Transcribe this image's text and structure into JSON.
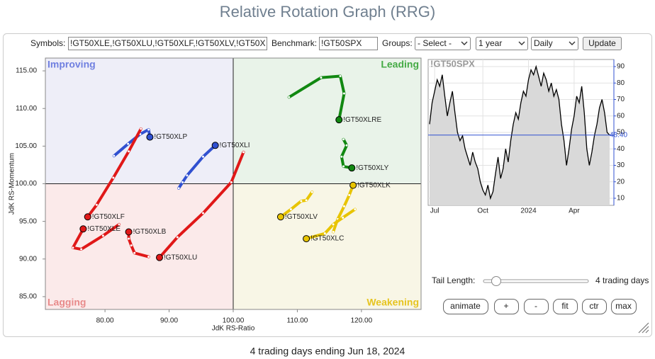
{
  "header": {
    "title": "Relative Rotation Graph (RRG)"
  },
  "controls": {
    "symbols_label": "Symbols:",
    "symbols": "!GT50XLE,!GT50XLU,!GT50XLF,!GT50XLV,!GT50X",
    "benchmark_label": "Benchmark:",
    "benchmark": "!GT50SPX",
    "groups_label": "Groups:",
    "groups": "- Select -",
    "period": "1 year",
    "frequency": "Daily",
    "update": "Update"
  },
  "chart_data": [
    {
      "type": "rrg",
      "xlabel": "JdK RS-Ratio",
      "ylabel": "JdK RS-Momentum",
      "quadrants": [
        "Improving",
        "Leading",
        "Lagging",
        "Weakening"
      ],
      "crosshair": {
        "x": 100,
        "y": 100
      },
      "xlim": [
        70.7,
        129.3
      ],
      "ylim": [
        83.3,
        116.7
      ],
      "xticks": [
        {
          "value": 80,
          "label": "80.00"
        },
        {
          "value": 90,
          "label": "90.00"
        },
        {
          "value": 100,
          "label": "100.00"
        },
        {
          "value": 110,
          "label": "110.00"
        },
        {
          "value": 120,
          "label": "120.00"
        }
      ],
      "yticks": [
        {
          "value": 85,
          "label": "85.00"
        },
        {
          "value": 90,
          "label": "90.00"
        },
        {
          "value": 95,
          "label": "95.00"
        },
        {
          "value": 100,
          "label": "100.00"
        },
        {
          "value": 105,
          "label": "105.00"
        },
        {
          "value": 110,
          "label": "110.00"
        },
        {
          "value": 115,
          "label": "115.00"
        }
      ],
      "series": [
        {
          "name": "!GT50XLP",
          "color": "#3050d0",
          "x": [
            81.4,
            83.6,
            85.5,
            86.8,
            87.0
          ],
          "values": [
            103.7,
            105.3,
            106.6,
            107.2,
            106.2
          ]
        },
        {
          "name": "!GT50XLI",
          "color": "#3050d0",
          "x": [
            91.5,
            92.1,
            92.8,
            95.3,
            97.2
          ],
          "values": [
            99.4,
            100.2,
            101.1,
            103.6,
            105.1
          ]
        },
        {
          "name": "!GT50XLRE",
          "color": "#118811",
          "x": [
            108.7,
            113.7,
            116.7,
            117.3,
            116.5
          ],
          "values": [
            111.5,
            114.1,
            114.3,
            112.0,
            108.5
          ]
        },
        {
          "name": "!GT50XLY",
          "color": "#118811",
          "x": [
            117.2,
            117.7,
            116.9,
            117.2,
            118.5
          ],
          "values": [
            105.9,
            105.1,
            103.6,
            102.3,
            102.1
          ]
        },
        {
          "name": "!GT50XLK",
          "color": "#e8c400",
          "x": [
            115.6,
            116.3,
            117.3,
            118.1,
            118.7
          ],
          "values": [
            93.6,
            95.3,
            97.0,
            98.5,
            99.8
          ]
        },
        {
          "name": "!GT50XLV",
          "color": "#e8c400",
          "x": [
            112.3,
            111.4,
            110.6,
            109.0,
            107.4
          ],
          "values": [
            98.9,
            97.8,
            97.7,
            96.6,
            95.6
          ]
        },
        {
          "name": "!GT50XLC",
          "color": "#e8c400",
          "x": [
            119.0,
            117.1,
            115.6,
            114.3,
            111.4
          ],
          "values": [
            96.6,
            95.5,
            94.6,
            93.4,
            92.7
          ]
        },
        {
          "name": "!GT50XLF",
          "color": "#e01818",
          "x": [
            85.6,
            83.7,
            81.3,
            78.7,
            77.3
          ],
          "values": [
            107.3,
            104.3,
            100.8,
            97.2,
            95.6
          ]
        },
        {
          "name": "!GT50XLE",
          "color": "#e01818",
          "x": [
            82.2,
            79.7,
            76.3,
            75.0,
            76.6
          ],
          "values": [
            94.6,
            93.1,
            91.3,
            91.5,
            94.0
          ]
        },
        {
          "name": "!GT50XLB",
          "color": "#e01818",
          "x": [
            86.8,
            84.6,
            84.1,
            83.7,
            83.7
          ],
          "values": [
            90.3,
            90.8,
            91.8,
            92.7,
            93.6
          ]
        },
        {
          "name": "!GT50XLU",
          "color": "#e01818",
          "x": [
            101.6,
            99.7,
            95.3,
            91.3,
            88.5
          ],
          "values": [
            104.2,
            100.2,
            96.1,
            92.9,
            90.2
          ]
        }
      ]
    },
    {
      "type": "line",
      "title": "!GT50SPX",
      "color": "#000000",
      "values": [
        55,
        68,
        75,
        82,
        78,
        85,
        72,
        60,
        68,
        75,
        62,
        50,
        45,
        48,
        40,
        35,
        30,
        38,
        32,
        28,
        20,
        15,
        12,
        18,
        10,
        14,
        25,
        35,
        22,
        28,
        40,
        32,
        45,
        55,
        62,
        58,
        68,
        75,
        72,
        82,
        88,
        85,
        90,
        84,
        78,
        86,
        82,
        75,
        80,
        72,
        76,
        70,
        55,
        45,
        30,
        40,
        52,
        60,
        72,
        68,
        78,
        62,
        40,
        30,
        38,
        48,
        55,
        65,
        70,
        62,
        50,
        48.4
      ],
      "last": {
        "value": 48.4,
        "label": "48.40"
      },
      "ylim": [
        5.7,
        94.3
      ],
      "yticks": [
        10,
        20,
        30,
        40,
        50,
        60,
        70,
        80,
        90
      ],
      "xticks": [
        {
          "value": 2,
          "label": "Jul"
        },
        {
          "value": 21,
          "label": "Oct"
        },
        {
          "value": 39,
          "label": "2024"
        },
        {
          "value": 57,
          "label": "Apr"
        }
      ]
    }
  ],
  "tail": {
    "label": "Tail Length:",
    "value": "4 trading days"
  },
  "buttons": [
    "animate",
    "+",
    "-",
    "fit",
    "ctr",
    "max"
  ],
  "footer": "4 trading days ending Jun 18, 2024"
}
